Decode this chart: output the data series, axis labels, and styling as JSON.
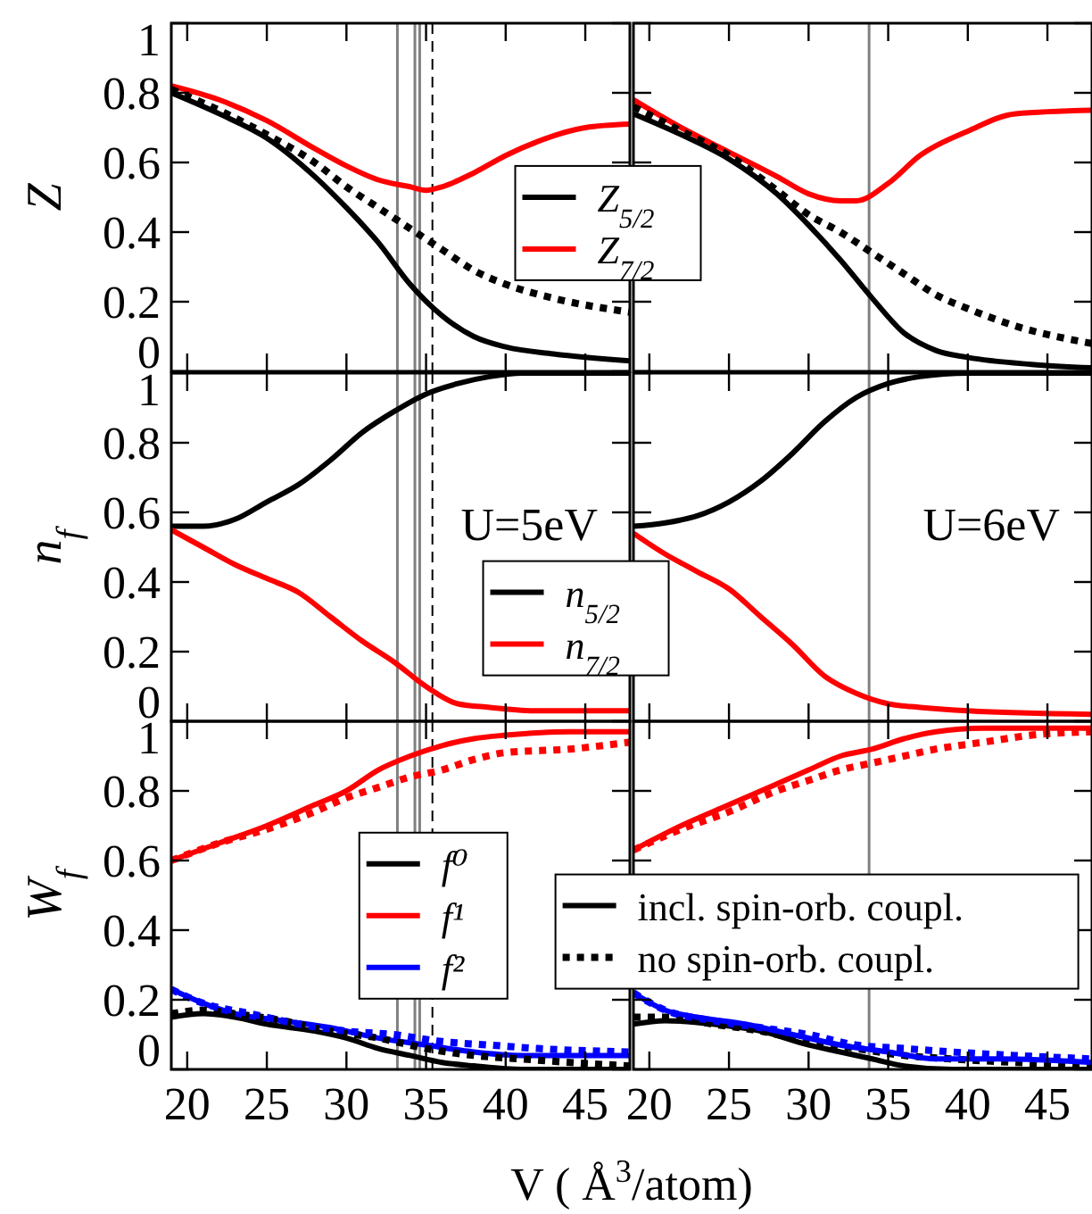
{
  "chart_data": [
    {
      "type": "line",
      "ylabel": "Z",
      "xlim": [
        19,
        47.8
      ],
      "ylim": [
        0,
        1
      ],
      "xticks": [
        20,
        25,
        30,
        35,
        40,
        45
      ],
      "yticks": [
        0,
        0.2,
        0.4,
        0.6,
        0.8,
        1
      ],
      "tick_labels": "y",
      "legend": "right",
      "ref_lines": [
        {
          "axis": "x",
          "value": 33.2,
          "color": "#808080"
        },
        {
          "axis": "x",
          "value": 34.3,
          "color": "#808080"
        },
        {
          "axis": "x",
          "value": 34.6,
          "color": "#808080"
        },
        {
          "axis": "x",
          "value": 35.4,
          "color": "#000000",
          "line_style": "dashed"
        }
      ],
      "series": [
        {
          "name": "Z$_{5/2}$",
          "color": "#000000",
          "line_style": "solid",
          "x": [
            19,
            22,
            25,
            28,
            30,
            32,
            34,
            36,
            38,
            40,
            43,
            47.8
          ],
          "values": [
            0.8,
            0.74,
            0.67,
            0.56,
            0.47,
            0.37,
            0.25,
            0.16,
            0.1,
            0.07,
            0.05,
            0.03
          ]
        },
        {
          "name": "Z$_{7/2}$",
          "color": "#ff0000",
          "line_style": "solid",
          "x": [
            19,
            22,
            25,
            28,
            30,
            32,
            34,
            35,
            36,
            38,
            40,
            42,
            45,
            47.8
          ],
          "values": [
            0.82,
            0.78,
            0.72,
            0.64,
            0.59,
            0.55,
            0.53,
            0.52,
            0.53,
            0.57,
            0.62,
            0.66,
            0.7,
            0.71
          ]
        },
        {
          "color": "#000000",
          "line_style": "dotted",
          "x": [
            19,
            22,
            25,
            28,
            30,
            32,
            34,
            36,
            38,
            40,
            43,
            47.8
          ],
          "values": [
            0.81,
            0.75,
            0.68,
            0.6,
            0.53,
            0.47,
            0.41,
            0.35,
            0.29,
            0.25,
            0.21,
            0.17
          ]
        }
      ]
    },
    {
      "type": "line",
      "xlim": [
        19,
        47.8
      ],
      "ylim": [
        0,
        1
      ],
      "xticks": [
        20,
        25,
        30,
        35,
        40,
        45
      ],
      "yticks": [
        0,
        0.2,
        0.4,
        0.6,
        0.8,
        1
      ],
      "tick_labels": false,
      "ref_lines": [
        {
          "axis": "x",
          "value": 33.8,
          "color": "#808080"
        }
      ],
      "series": [
        {
          "color": "#000000",
          "line_style": "solid",
          "x": [
            19,
            22,
            25,
            28,
            30,
            32,
            34,
            36,
            38,
            40,
            44,
            47.8
          ],
          "values": [
            0.74,
            0.68,
            0.61,
            0.51,
            0.42,
            0.32,
            0.21,
            0.11,
            0.06,
            0.04,
            0.02,
            0.01
          ]
        },
        {
          "color": "#ff0000",
          "line_style": "solid",
          "x": [
            19,
            22,
            25,
            28,
            30,
            32,
            33,
            35,
            37,
            40,
            43,
            47.8
          ],
          "values": [
            0.78,
            0.7,
            0.63,
            0.56,
            0.51,
            0.49,
            0.49,
            0.54,
            0.62,
            0.69,
            0.74,
            0.75
          ]
        },
        {
          "color": "#000000",
          "line_style": "dotted",
          "x": [
            19,
            22,
            25,
            28,
            30,
            32,
            34,
            36,
            38,
            40,
            43,
            47.8
          ],
          "values": [
            0.76,
            0.69,
            0.62,
            0.52,
            0.45,
            0.4,
            0.34,
            0.28,
            0.22,
            0.18,
            0.13,
            0.08
          ]
        }
      ]
    },
    {
      "type": "line",
      "ylabel": "n$_{f}$",
      "xlim": [
        19,
        47.8
      ],
      "ylim": [
        0,
        1
      ],
      "xticks": [
        20,
        25,
        30,
        35,
        40,
        45
      ],
      "yticks": [
        0,
        0.2,
        0.4,
        0.6,
        0.8,
        1
      ],
      "tick_labels": "y",
      "legend": "bottom right",
      "annotations": [
        "U=5eV"
      ],
      "ref_lines": [
        {
          "axis": "x",
          "value": 33.2,
          "color": "#808080"
        },
        {
          "axis": "x",
          "value": 34.3,
          "color": "#808080"
        },
        {
          "axis": "x",
          "value": 34.6,
          "color": "#808080"
        },
        {
          "axis": "x",
          "value": 35.4,
          "color": "#000000",
          "line_style": "dashed"
        }
      ],
      "series": [
        {
          "name": "n$_{5/2}$",
          "color": "#000000",
          "line_style": "solid",
          "x": [
            19,
            21,
            23,
            25,
            27,
            29,
            31,
            33,
            35,
            37,
            39,
            41,
            47.8
          ],
          "values": [
            0.56,
            0.56,
            0.58,
            0.63,
            0.68,
            0.75,
            0.83,
            0.89,
            0.94,
            0.97,
            0.99,
            1,
            1
          ]
        },
        {
          "name": "n$_{7/2}$",
          "color": "#ff0000",
          "line_style": "solid",
          "x": [
            19,
            21,
            23,
            25,
            27,
            29,
            31,
            33,
            35,
            37,
            39,
            42,
            47.8
          ],
          "values": [
            0.55,
            0.5,
            0.45,
            0.41,
            0.37,
            0.3,
            0.23,
            0.17,
            0.1,
            0.05,
            0.04,
            0.03,
            0.03
          ]
        }
      ]
    },
    {
      "type": "line",
      "xlim": [
        19,
        47.8
      ],
      "ylim": [
        0,
        1
      ],
      "xticks": [
        20,
        25,
        30,
        35,
        40,
        45
      ],
      "yticks": [
        0,
        0.2,
        0.4,
        0.6,
        0.8,
        1
      ],
      "tick_labels": false,
      "annotations": [
        "U=6eV"
      ],
      "ref_lines": [
        {
          "axis": "x",
          "value": 33.8,
          "color": "#808080"
        }
      ],
      "series": [
        {
          "color": "#000000",
          "line_style": "solid",
          "x": [
            19,
            21,
            23,
            25,
            27,
            29,
            31,
            33,
            35,
            37,
            40,
            47.8
          ],
          "values": [
            0.56,
            0.57,
            0.59,
            0.63,
            0.69,
            0.77,
            0.86,
            0.93,
            0.97,
            0.99,
            1,
            1
          ]
        },
        {
          "color": "#ff0000",
          "line_style": "solid",
          "x": [
            19,
            21,
            23,
            25,
            27,
            29,
            31,
            33,
            35,
            37,
            40,
            47.8
          ],
          "values": [
            0.54,
            0.48,
            0.43,
            0.38,
            0.3,
            0.22,
            0.13,
            0.08,
            0.05,
            0.04,
            0.03,
            0.02
          ]
        }
      ]
    },
    {
      "type": "line",
      "ylabel": "W$_{f}$",
      "xlabel": "V ( Å$^{3}$/atom)",
      "xlim": [
        19,
        47.8
      ],
      "ylim": [
        0,
        1
      ],
      "xticks": [
        20,
        25,
        30,
        35,
        40,
        45
      ],
      "yticks": [
        0,
        0.2,
        0.4,
        0.6,
        0.8,
        1
      ],
      "legend": "center",
      "ref_lines": [
        {
          "axis": "x",
          "value": 33.2,
          "color": "#808080"
        },
        {
          "axis": "x",
          "value": 34.3,
          "color": "#808080"
        },
        {
          "axis": "x",
          "value": 34.6,
          "color": "#808080"
        },
        {
          "axis": "x",
          "value": 35.4,
          "color": "#000000",
          "line_style": "dashed"
        }
      ],
      "series": [
        {
          "name": "f⁰",
          "color": "#000000",
          "line_style": "solid",
          "x": [
            19,
            21,
            23,
            25,
            28,
            30,
            32,
            34,
            36,
            38,
            41,
            47.8
          ],
          "values": [
            0.15,
            0.16,
            0.15,
            0.13,
            0.11,
            0.09,
            0.06,
            0.04,
            0.02,
            0.01,
            0,
            0
          ]
        },
        {
          "name": "f¹",
          "color": "#ff0000",
          "line_style": "solid",
          "x": [
            19,
            22,
            25,
            28,
            30,
            32,
            34,
            36,
            38,
            40,
            44,
            47.8
          ],
          "values": [
            0.6,
            0.65,
            0.7,
            0.76,
            0.8,
            0.86,
            0.9,
            0.93,
            0.95,
            0.96,
            0.97,
            0.97
          ]
        },
        {
          "name": "f²",
          "color": "#0000ff",
          "line_style": "solid",
          "x": [
            19,
            21,
            23,
            26,
            29,
            32,
            35,
            38,
            41,
            44,
            47.8
          ],
          "values": [
            0.23,
            0.19,
            0.16,
            0.14,
            0.12,
            0.09,
            0.07,
            0.05,
            0.04,
            0.04,
            0.04
          ]
        },
        {
          "color": "#000000",
          "line_style": "dotted",
          "x": [
            19,
            21,
            23,
            26,
            29,
            32,
            35,
            38,
            41,
            44,
            47.8
          ],
          "values": [
            0.16,
            0.17,
            0.16,
            0.14,
            0.11,
            0.09,
            0.06,
            0.04,
            0.03,
            0.02,
            0.01
          ]
        },
        {
          "color": "#ff0000",
          "line_style": "dotted",
          "x": [
            19,
            22,
            25,
            28,
            30,
            32,
            34,
            36,
            38,
            40,
            44,
            47.8
          ],
          "values": [
            0.6,
            0.65,
            0.69,
            0.74,
            0.78,
            0.81,
            0.84,
            0.86,
            0.89,
            0.91,
            0.92,
            0.94
          ]
        },
        {
          "color": "#0000ff",
          "line_style": "dotted",
          "x": [
            19,
            21,
            24,
            27,
            30,
            33,
            36,
            39,
            42,
            47.8
          ],
          "values": [
            0.23,
            0.19,
            0.16,
            0.13,
            0.11,
            0.1,
            0.08,
            0.07,
            0.06,
            0.05
          ]
        }
      ]
    },
    {
      "type": "line",
      "xlim": [
        19,
        47.8
      ],
      "ylim": [
        0,
        1
      ],
      "xticks": [
        20,
        25,
        30,
        35,
        40,
        45
      ],
      "yticks": [
        0,
        0.2,
        0.4,
        0.6,
        0.8,
        1
      ],
      "tick_labels": "x",
      "legend": "left",
      "ref_lines": [
        {
          "axis": "x",
          "value": 33.8,
          "color": "#808080"
        }
      ],
      "series": [
        {
          "name": "incl. spin-orb. coupl.",
          "color": "#000000",
          "line_style": "solid",
          "x": [
            19,
            21,
            24,
            27,
            30,
            32,
            34,
            36,
            39,
            47.8
          ],
          "values": [
            0.13,
            0.14,
            0.13,
            0.11,
            0.07,
            0.05,
            0.03,
            0.01,
            0,
            0
          ]
        },
        {
          "name": "no spin-orb. coupl.",
          "color": "#000000",
          "line_style": "dotted",
          "x": [
            19,
            21,
            24,
            27,
            30,
            33,
            36,
            39,
            43,
            47.8
          ],
          "values": [
            0.15,
            0.15,
            0.13,
            0.11,
            0.08,
            0.06,
            0.04,
            0.03,
            0.02,
            0.01
          ]
        },
        {
          "color": "#ff0000",
          "line_style": "solid",
          "x": [
            19,
            22,
            25,
            28,
            30,
            32,
            34,
            36,
            38,
            41,
            47.8
          ],
          "values": [
            0.63,
            0.7,
            0.76,
            0.82,
            0.86,
            0.9,
            0.92,
            0.95,
            0.97,
            0.98,
            0.98
          ]
        },
        {
          "color": "#ff0000",
          "line_style": "dotted",
          "x": [
            19,
            22,
            25,
            28,
            30,
            32,
            34,
            36,
            38,
            41,
            44,
            47.8
          ],
          "values": [
            0.63,
            0.69,
            0.74,
            0.8,
            0.83,
            0.86,
            0.88,
            0.9,
            0.92,
            0.94,
            0.96,
            0.97
          ]
        },
        {
          "color": "#0000ff",
          "line_style": "solid",
          "x": [
            19,
            21,
            23,
            26,
            29,
            32,
            35,
            38,
            42,
            47.8
          ],
          "values": [
            0.22,
            0.17,
            0.15,
            0.13,
            0.1,
            0.07,
            0.05,
            0.03,
            0.03,
            0.02
          ]
        },
        {
          "color": "#0000ff",
          "line_style": "dotted",
          "x": [
            19,
            21,
            24,
            27,
            30,
            33,
            36,
            39,
            43,
            47.8
          ],
          "values": [
            0.22,
            0.17,
            0.14,
            0.12,
            0.1,
            0.07,
            0.06,
            0.05,
            0.04,
            0.03
          ]
        }
      ]
    }
  ]
}
